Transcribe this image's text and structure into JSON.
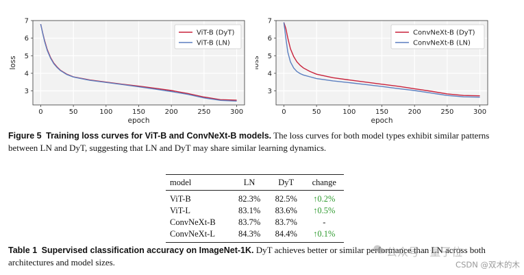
{
  "colors": {
    "dyt": "#c8213a",
    "ln": "#5b7fc0",
    "green": "#2e9a2e"
  },
  "chart_data": [
    {
      "type": "line",
      "title": "",
      "xlabel": "epoch",
      "ylabel": "loss",
      "xlim": [
        -12,
        312
      ],
      "ylim": [
        2.2,
        7
      ],
      "xticks": [
        0,
        50,
        100,
        150,
        200,
        250,
        300
      ],
      "yticks": [
        3,
        4,
        5,
        6,
        7
      ],
      "grid": true,
      "legend": "top-right",
      "series": [
        {
          "name": "ViT-B (DyT)",
          "color": "#c8213a",
          "x": [
            0,
            3,
            6,
            10,
            15,
            20,
            25,
            30,
            40,
            50,
            75,
            100,
            125,
            150,
            175,
            200,
            225,
            250,
            275,
            300
          ],
          "y": [
            6.8,
            6.3,
            5.85,
            5.35,
            4.9,
            4.58,
            4.36,
            4.18,
            3.95,
            3.8,
            3.62,
            3.5,
            3.38,
            3.27,
            3.15,
            3.02,
            2.85,
            2.65,
            2.5,
            2.47
          ]
        },
        {
          "name": "ViT-B (LN)",
          "color": "#5b7fc0",
          "x": [
            0,
            3,
            6,
            10,
            15,
            20,
            25,
            30,
            40,
            50,
            75,
            100,
            125,
            150,
            175,
            200,
            225,
            250,
            275,
            300
          ],
          "y": [
            6.8,
            6.28,
            5.8,
            5.3,
            4.86,
            4.55,
            4.33,
            4.16,
            3.93,
            3.79,
            3.6,
            3.48,
            3.36,
            3.23,
            3.1,
            2.96,
            2.8,
            2.6,
            2.46,
            2.42
          ]
        }
      ]
    },
    {
      "type": "line",
      "title": "",
      "xlabel": "epoch",
      "ylabel": "loss",
      "xlim": [
        -12,
        312
      ],
      "ylim": [
        2.2,
        7
      ],
      "xticks": [
        0,
        50,
        100,
        150,
        200,
        250,
        300
      ],
      "yticks": [
        3,
        4,
        5,
        6,
        7
      ],
      "grid": true,
      "legend": "top-right",
      "series": [
        {
          "name": "ConvNeXt-B (DyT)",
          "color": "#c8213a",
          "x": [
            0,
            3,
            6,
            10,
            15,
            20,
            25,
            30,
            40,
            50,
            75,
            100,
            125,
            150,
            175,
            200,
            225,
            250,
            275,
            300
          ],
          "y": [
            6.9,
            6.55,
            6.0,
            5.4,
            4.95,
            4.65,
            4.45,
            4.3,
            4.1,
            3.95,
            3.75,
            3.62,
            3.5,
            3.38,
            3.26,
            3.12,
            2.98,
            2.83,
            2.74,
            2.72
          ]
        },
        {
          "name": "ConvNeXt-B (LN)",
          "color": "#5b7fc0",
          "x": [
            0,
            3,
            6,
            10,
            15,
            20,
            25,
            30,
            40,
            50,
            75,
            100,
            125,
            150,
            175,
            200,
            225,
            250,
            275,
            300
          ],
          "y": [
            6.9,
            6.0,
            5.2,
            4.65,
            4.3,
            4.1,
            3.98,
            3.9,
            3.8,
            3.7,
            3.57,
            3.47,
            3.36,
            3.25,
            3.13,
            3.02,
            2.88,
            2.74,
            2.66,
            2.64
          ]
        }
      ]
    }
  ],
  "figure_caption": {
    "label": "Figure 5",
    "bold": "Training loss curves for ViT-B and ConvNeXt-B models.",
    "text": "The loss curves for both model types exhibit similar patterns between LN and DyT, suggesting that LN and DyT may share similar learning dynamics."
  },
  "table": {
    "headers": [
      "model",
      "LN",
      "DyT",
      "change"
    ],
    "rows": [
      {
        "model": "ViT-B",
        "ln": "82.3%",
        "dyt": "82.5%",
        "change": "↑0.2%"
      },
      {
        "model": "ViT-L",
        "ln": "83.1%",
        "dyt": "83.6%",
        "change": "↑0.5%"
      },
      {
        "model": "ConvNeXt-B",
        "ln": "83.7%",
        "dyt": "83.7%",
        "change": "-"
      },
      {
        "model": "ConvNeXt-L",
        "ln": "84.3%",
        "dyt": "84.4%",
        "change": "↑0.1%"
      }
    ]
  },
  "table_caption": {
    "label": "Table 1",
    "bold": "Supervised classification accuracy on ImageNet-1K.",
    "text": "DyT achieves better or similar performance than LN across both architectures and model sizes."
  },
  "watermarks": {
    "wechat": "公众号 · 量子位",
    "csdn": "CSDN @双木的木"
  }
}
